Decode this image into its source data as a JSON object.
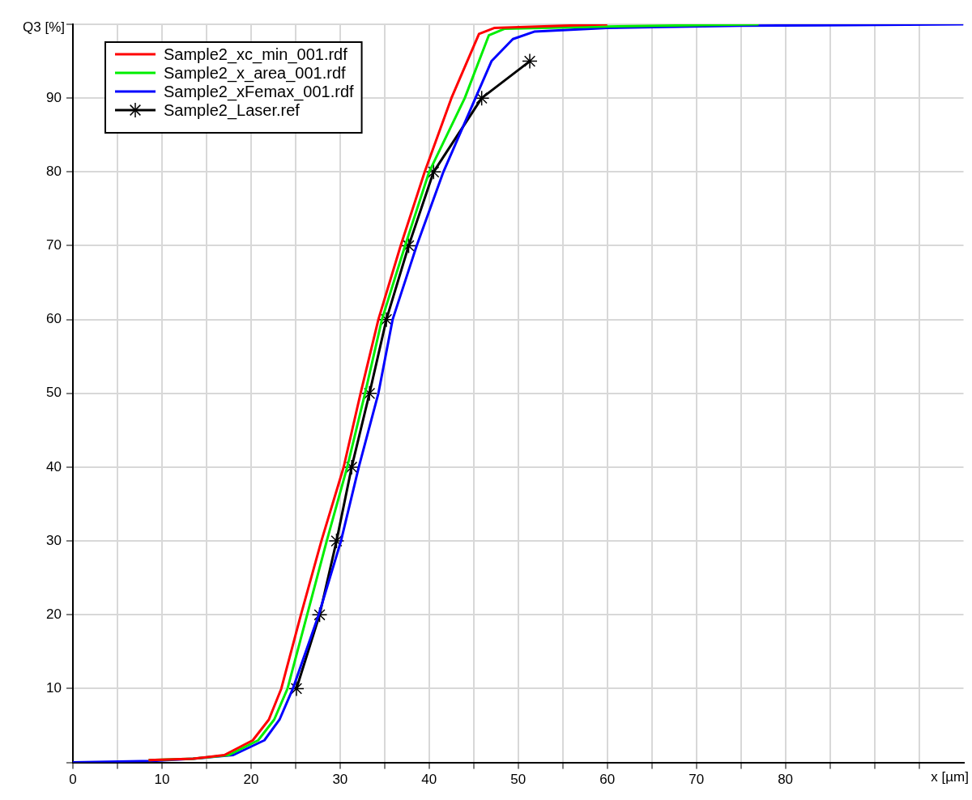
{
  "chart_data": {
    "type": "line",
    "xlabel": "x [µm]",
    "ylabel": "Q3 [%]",
    "xlim": [
      0,
      100
    ],
    "xticks": [
      0,
      {
        "value": 5,
        "label": null
      },
      10,
      {
        "value": 15,
        "label": null
      },
      20,
      {
        "value": 25,
        "label": null
      },
      30,
      {
        "value": 35,
        "label": null
      },
      40,
      {
        "value": 45,
        "label": null
      },
      50,
      {
        "value": 55,
        "label": null
      },
      60,
      {
        "value": 65,
        "label": null
      },
      70,
      {
        "value": 75,
        "label": null
      },
      80,
      {
        "value": 85,
        "label": null
      },
      {
        "value": 90,
        "label": null
      },
      {
        "value": 95,
        "label": null
      }
    ],
    "ylim": [
      0,
      100
    ],
    "yticks": [
      {
        "value": 0,
        "label": null
      },
      10,
      20,
      30,
      40,
      50,
      60,
      70,
      80,
      90,
      {
        "value": 100,
        "label": null
      }
    ],
    "grid": true,
    "legend": "top left",
    "line_style": "solid",
    "series": [
      {
        "name": "Sample2_xc_min_001.rdf",
        "color": "#ff0000",
        "marker": "none",
        "x": [
          8.5,
          13.5,
          17,
          20.2,
          22,
          23.4,
          25.6,
          27.9,
          30.4,
          32.3,
          34.3,
          36.8,
          39.5,
          42.5,
          45.6,
          47.3,
          55,
          60
        ],
        "values": [
          0.3,
          0.5,
          1,
          3,
          5.8,
          10,
          20,
          30,
          40,
          50,
          60,
          70,
          80,
          90,
          98.7,
          99.5,
          99.8,
          100
        ]
      },
      {
        "name": "Sample2_x_area_001.rdf",
        "color": "#00ee00",
        "marker": "none",
        "x": [
          8.5,
          13.5,
          17.5,
          20.8,
          22.6,
          24.1,
          26.3,
          28.5,
          30.8,
          32.8,
          34.7,
          37.3,
          40,
          44,
          46.7,
          48.5,
          60,
          77
        ],
        "values": [
          0.3,
          0.5,
          1,
          3,
          5.8,
          10,
          20,
          30,
          40,
          50,
          60,
          70,
          80,
          90,
          98.5,
          99.4,
          99.7,
          100
        ]
      },
      {
        "name": "Sample2_xFemax_001.rdf",
        "color": "#0000ff",
        "marker": "none",
        "x": [
          0,
          9,
          13.5,
          18,
          21.5,
          23.2,
          24.7,
          27.6,
          30.1,
          32.1,
          34.3,
          35.9,
          38.6,
          41.6,
          45.2,
          47,
          49.4,
          51.8,
          60,
          75,
          100
        ],
        "values": [
          0,
          0.2,
          0.5,
          1,
          3,
          5.8,
          10,
          20,
          30,
          40,
          50,
          60,
          70,
          80,
          90,
          95,
          98,
          99,
          99.5,
          99.8,
          100
        ]
      },
      {
        "name": "Sample2_Laser.ref",
        "color": "#000000",
        "marker": "cross",
        "x": [
          25.1,
          27.7,
          29.6,
          31.3,
          33.3,
          35.2,
          37.7,
          40.5,
          45.9,
          51.3
        ],
        "values": [
          10,
          20,
          30,
          40,
          50,
          60,
          70,
          80,
          90,
          95
        ]
      }
    ]
  }
}
